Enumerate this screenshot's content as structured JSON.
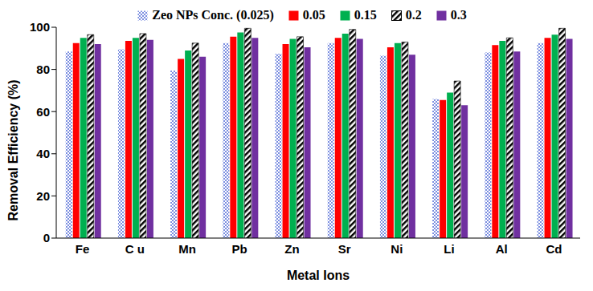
{
  "chart_data": {
    "type": "bar",
    "x_label": "Metal Ions",
    "y_label": "Removal Efficiency  (%)",
    "categories": [
      "Fe",
      "C u",
      "Mn",
      "Pb",
      "Zn",
      "Sr",
      "Ni",
      "Li",
      "Al",
      "Cd"
    ],
    "series": [
      {
        "name": "Zeo NPs Conc. (0.025)",
        "color": "#7b8ee0",
        "values": [
          88.5,
          89.5,
          79.5,
          92.5,
          87.5,
          92.5,
          86.5,
          66,
          88,
          92.5
        ]
      },
      {
        "name": "0.05",
        "color": "#ff0000",
        "values": [
          92.5,
          93.5,
          85,
          95.5,
          92,
          95,
          90.5,
          65.5,
          91.5,
          95
        ]
      },
      {
        "name": "0.15",
        "color": "#00b050",
        "values": [
          95,
          95,
          89,
          97.5,
          94.5,
          97,
          92.5,
          69,
          93.5,
          96.5
        ]
      },
      {
        "name": "0.2",
        "color": "#000000",
        "values": [
          96.5,
          97,
          92.5,
          99.5,
          95.5,
          99,
          93,
          74.5,
          95,
          99.5
        ]
      },
      {
        "name": "0.3",
        "color": "#7030a0",
        "values": [
          92,
          94,
          86,
          95,
          90.5,
          94.5,
          87,
          63,
          88.5,
          94.5
        ]
      }
    ],
    "ylim": [
      0,
      100
    ],
    "yticks": [
      0,
      20,
      40,
      60,
      80,
      100
    ],
    "grid": false,
    "legend": "top"
  }
}
